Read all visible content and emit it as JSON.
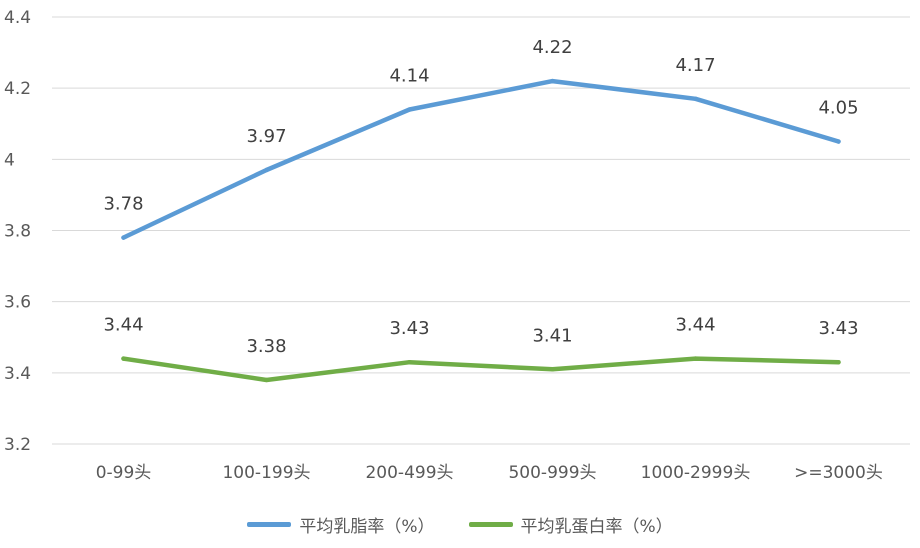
{
  "chart_data": {
    "type": "line",
    "categories": [
      "0-99头",
      "100-199头",
      "200-499头",
      "500-999头",
      "1000-2999头",
      ">=3000头"
    ],
    "series": [
      {
        "name": "平均乳脂率（%）",
        "values": [
          3.78,
          3.97,
          4.14,
          4.22,
          4.17,
          4.05
        ],
        "labels": [
          "3.78",
          "3.97",
          "4.14",
          "4.22",
          "4.17",
          "4.05"
        ],
        "color": "#5b9bd5"
      },
      {
        "name": "平均乳蛋白率（%）",
        "values": [
          3.44,
          3.38,
          3.43,
          3.41,
          3.44,
          3.43
        ],
        "labels": [
          "3.44",
          "3.38",
          "3.43",
          "3.41",
          "3.44",
          "3.43"
        ],
        "color": "#70ad47"
      }
    ],
    "ylim": [
      3.2,
      4.4
    ],
    "yticks": [
      3.2,
      3.4,
      3.6,
      3.8,
      4,
      4.2,
      4.4
    ],
    "ytick_labels": [
      "3.2",
      "3.4",
      "3.6",
      "3.8",
      "4",
      "4.2",
      "4.4"
    ],
    "grid": true,
    "legend_position": "bottom",
    "title": "",
    "xlabel": "",
    "ylabel": ""
  }
}
